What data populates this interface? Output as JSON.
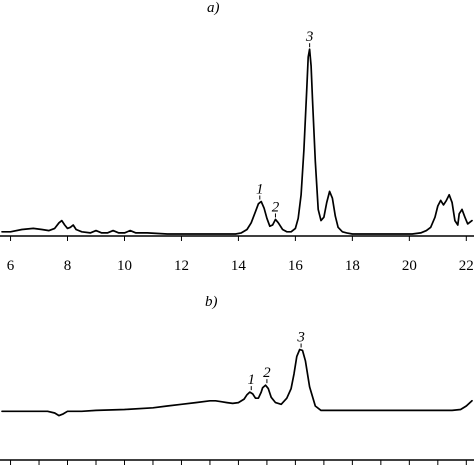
{
  "chart_data": [
    {
      "type": "line",
      "panel_label": "a)",
      "xlim": [
        5.7,
        22.2
      ],
      "ticks": [
        6,
        8,
        10,
        12,
        14,
        16,
        18,
        20,
        22
      ],
      "tick_labels": [
        "6",
        "8",
        "10",
        "12",
        "14",
        "16",
        "18",
        "20",
        "22"
      ],
      "grid": false,
      "series": [
        {
          "x": [
            5.7,
            6.0,
            6.4,
            6.8,
            7.1,
            7.35,
            7.55,
            7.7,
            7.8,
            7.9,
            8.0,
            8.1,
            8.2,
            8.3,
            8.5,
            8.8,
            9.0,
            9.2,
            9.4,
            9.6,
            9.8,
            10.0,
            10.2,
            10.4,
            10.8,
            11.5,
            12.0,
            12.5,
            13.0,
            13.5,
            13.9,
            14.1,
            14.3,
            14.45,
            14.6,
            14.7,
            14.8,
            14.9,
            15.0,
            15.1,
            15.2,
            15.3,
            15.4,
            15.55,
            15.7,
            15.85,
            16.0,
            16.1,
            16.2,
            16.3,
            16.4,
            16.45,
            16.5,
            16.55,
            16.6,
            16.7,
            16.8,
            16.9,
            17.0,
            17.1,
            17.2,
            17.3,
            17.4,
            17.5,
            17.65,
            17.8,
            18.0,
            18.3,
            18.6,
            19.0,
            19.4,
            19.8,
            20.1,
            20.4,
            20.6,
            20.75,
            20.9,
            21.0,
            21.1,
            21.2,
            21.3,
            21.4,
            21.5,
            21.6,
            21.7,
            21.75,
            21.85,
            21.95,
            22.05,
            22.2
          ],
          "y": [
            2,
            2,
            4,
            5,
            4,
            3,
            5,
            10,
            12,
            8,
            5,
            6,
            8,
            4,
            2,
            1,
            3,
            1,
            1,
            3,
            1,
            1,
            3,
            1,
            1,
            0,
            0,
            0,
            0,
            0,
            0,
            1,
            4,
            10,
            20,
            27,
            29,
            23,
            14,
            7,
            8,
            13,
            10,
            4,
            2,
            2,
            5,
            14,
            35,
            75,
            130,
            158,
            165,
            150,
            120,
            65,
            22,
            12,
            15,
            28,
            38,
            32,
            16,
            6,
            2,
            1,
            0,
            0,
            0,
            0,
            0,
            0,
            0,
            1,
            3,
            6,
            15,
            25,
            30,
            26,
            30,
            35,
            28,
            12,
            8,
            18,
            22,
            15,
            9,
            12
          ]
        }
      ],
      "peak_labels": [
        {
          "text": "1",
          "x": 14.75,
          "y": 29
        },
        {
          "text": "2",
          "x": 15.3,
          "y": 13
        },
        {
          "text": "3",
          "x": 16.5,
          "y": 165
        }
      ]
    },
    {
      "type": "line",
      "panel_label": "b)",
      "xlim": [
        5.7,
        22.2
      ],
      "ticks": [
        6,
        7,
        8,
        9,
        10,
        11,
        12,
        13,
        14,
        15,
        16,
        17,
        18,
        19,
        20,
        21,
        22
      ],
      "tick_labels": [],
      "grid": false,
      "series": [
        {
          "x": [
            5.7,
            6.5,
            7.0,
            7.3,
            7.55,
            7.7,
            7.85,
            8.0,
            8.5,
            9.0,
            10.0,
            11.0,
            11.5,
            12.0,
            12.5,
            13.0,
            13.2,
            13.4,
            13.6,
            13.8,
            14.0,
            14.2,
            14.3,
            14.4,
            14.5,
            14.6,
            14.7,
            14.8,
            14.85,
            14.95,
            15.05,
            15.15,
            15.3,
            15.5,
            15.7,
            15.85,
            15.95,
            16.05,
            16.15,
            16.25,
            16.35,
            16.5,
            16.7,
            16.9,
            17.1,
            17.4,
            18.0,
            19.0,
            20.0,
            20.8,
            21.2,
            21.5,
            21.8,
            22.0,
            22.2
          ],
          "y": [
            2,
            2,
            2,
            2,
            0,
            -3,
            -1,
            2,
            2,
            3,
            4,
            6,
            8,
            10,
            12,
            14,
            14,
            13,
            12,
            11,
            12,
            16,
            21,
            24,
            22,
            17,
            17,
            24,
            29,
            32,
            28,
            18,
            12,
            10,
            17,
            28,
            45,
            65,
            73,
            72,
            60,
            30,
            8,
            3,
            3,
            3,
            3,
            3,
            3,
            3,
            3,
            3,
            4,
            8,
            14
          ]
        }
      ],
      "peak_labels": [
        {
          "text": "1",
          "x": 14.45,
          "y": 24
        },
        {
          "text": "2",
          "x": 15.0,
          "y": 32
        },
        {
          "text": "3",
          "x": 16.2,
          "y": 73
        }
      ]
    }
  ]
}
